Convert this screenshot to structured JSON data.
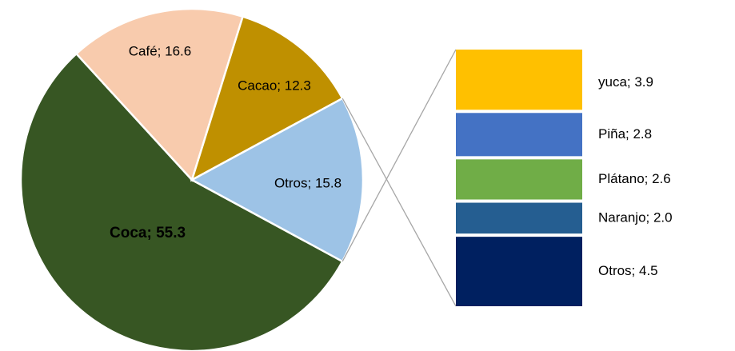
{
  "chart_data": [
    {
      "type": "pie",
      "categories": [
        "Coca",
        "Café",
        "Cacao",
        "Otros"
      ],
      "values": [
        55.3,
        16.6,
        12.3,
        15.8
      ],
      "value_labels": [
        "Coca; 55.3",
        "Café; 16.6",
        "Cacao; 12.3",
        "Otros; 15.8"
      ],
      "colors": [
        "#375623",
        "#F8CBAD",
        "#BF9000",
        "#9DC3E6"
      ]
    },
    {
      "type": "bar",
      "categories": [
        "yuca",
        "Piña",
        "Plátano",
        "Naranjo",
        "Otros"
      ],
      "values": [
        3.9,
        2.8,
        2.6,
        2.0,
        4.5
      ],
      "value_labels": [
        "yuca; 3.9",
        "Piña; 2.8",
        "Plátano; 2.6",
        "Naranjo; 2.0",
        "Otros; 4.5"
      ],
      "colors": [
        "#FFC000",
        "#4472C4",
        "#70AD47",
        "#255E91",
        "#002060"
      ]
    }
  ]
}
